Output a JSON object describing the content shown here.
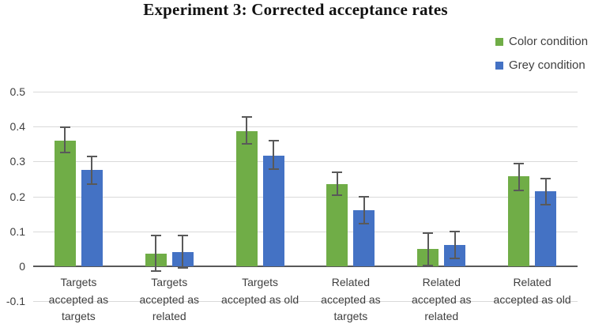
{
  "title": "Experiment 3: Corrected acceptance rates",
  "legend": {
    "items": [
      {
        "label": "Color condition",
        "color": "#70AD47",
        "icon": "green-square-swatch-icon"
      },
      {
        "label": "Grey condition",
        "color": "#4472C4",
        "icon": "blue-square-swatch-icon"
      }
    ]
  },
  "chart_data": {
    "type": "bar",
    "title": "Experiment 3: Corrected acceptance rates",
    "categories": [
      "Targets accepted as targets",
      "Targets accepted as related",
      "Targets accepted as old",
      "Related accepted as targets",
      "Related accepted as related",
      "Related accepted as old"
    ],
    "category_label_lines": [
      [
        "Targets",
        "accepted as",
        "targets"
      ],
      [
        "Targets",
        "accepted as",
        "related"
      ],
      [
        "Targets",
        "accepted as old"
      ],
      [
        "Related",
        "accepted as",
        "targets"
      ],
      [
        "Related",
        "accepted as",
        "related"
      ],
      [
        "Related",
        "accepted as old"
      ]
    ],
    "series": [
      {
        "name": "Color condition",
        "color": "#70AD47",
        "values": [
          0.36,
          0.035,
          0.387,
          0.236,
          0.049,
          0.257
        ],
        "error_low": [
          0.325,
          -0.013,
          0.35,
          0.203,
          0.003,
          0.218
        ],
        "error_high": [
          0.399,
          0.088,
          0.428,
          0.269,
          0.095,
          0.294
        ]
      },
      {
        "name": "Grey condition",
        "color": "#4472C4",
        "values": [
          0.275,
          0.04,
          0.316,
          0.161,
          0.06,
          0.214
        ],
        "error_low": [
          0.235,
          -0.004,
          0.277,
          0.123,
          0.023,
          0.176
        ],
        "error_high": [
          0.315,
          0.087,
          0.359,
          0.2,
          0.1,
          0.252
        ]
      }
    ],
    "xlabel": "",
    "ylabel": "",
    "ylim": [
      -0.1,
      0.5
    ],
    "y_tick_values": [
      0.5,
      0.4,
      0.3,
      0.2,
      0.1,
      0,
      -0.1
    ],
    "y_tick_labels": [
      "0.5",
      "0.4",
      "0.3",
      "0.2",
      "0.1",
      "0",
      "-0.1"
    ],
    "grid": true,
    "legend_position": "top-right",
    "colors": {
      "gridline": "#D9D9D9",
      "axis": "#595959",
      "error_bar": "#595959",
      "tick_text": "#3F3F3F",
      "title_text": "#111111"
    }
  }
}
